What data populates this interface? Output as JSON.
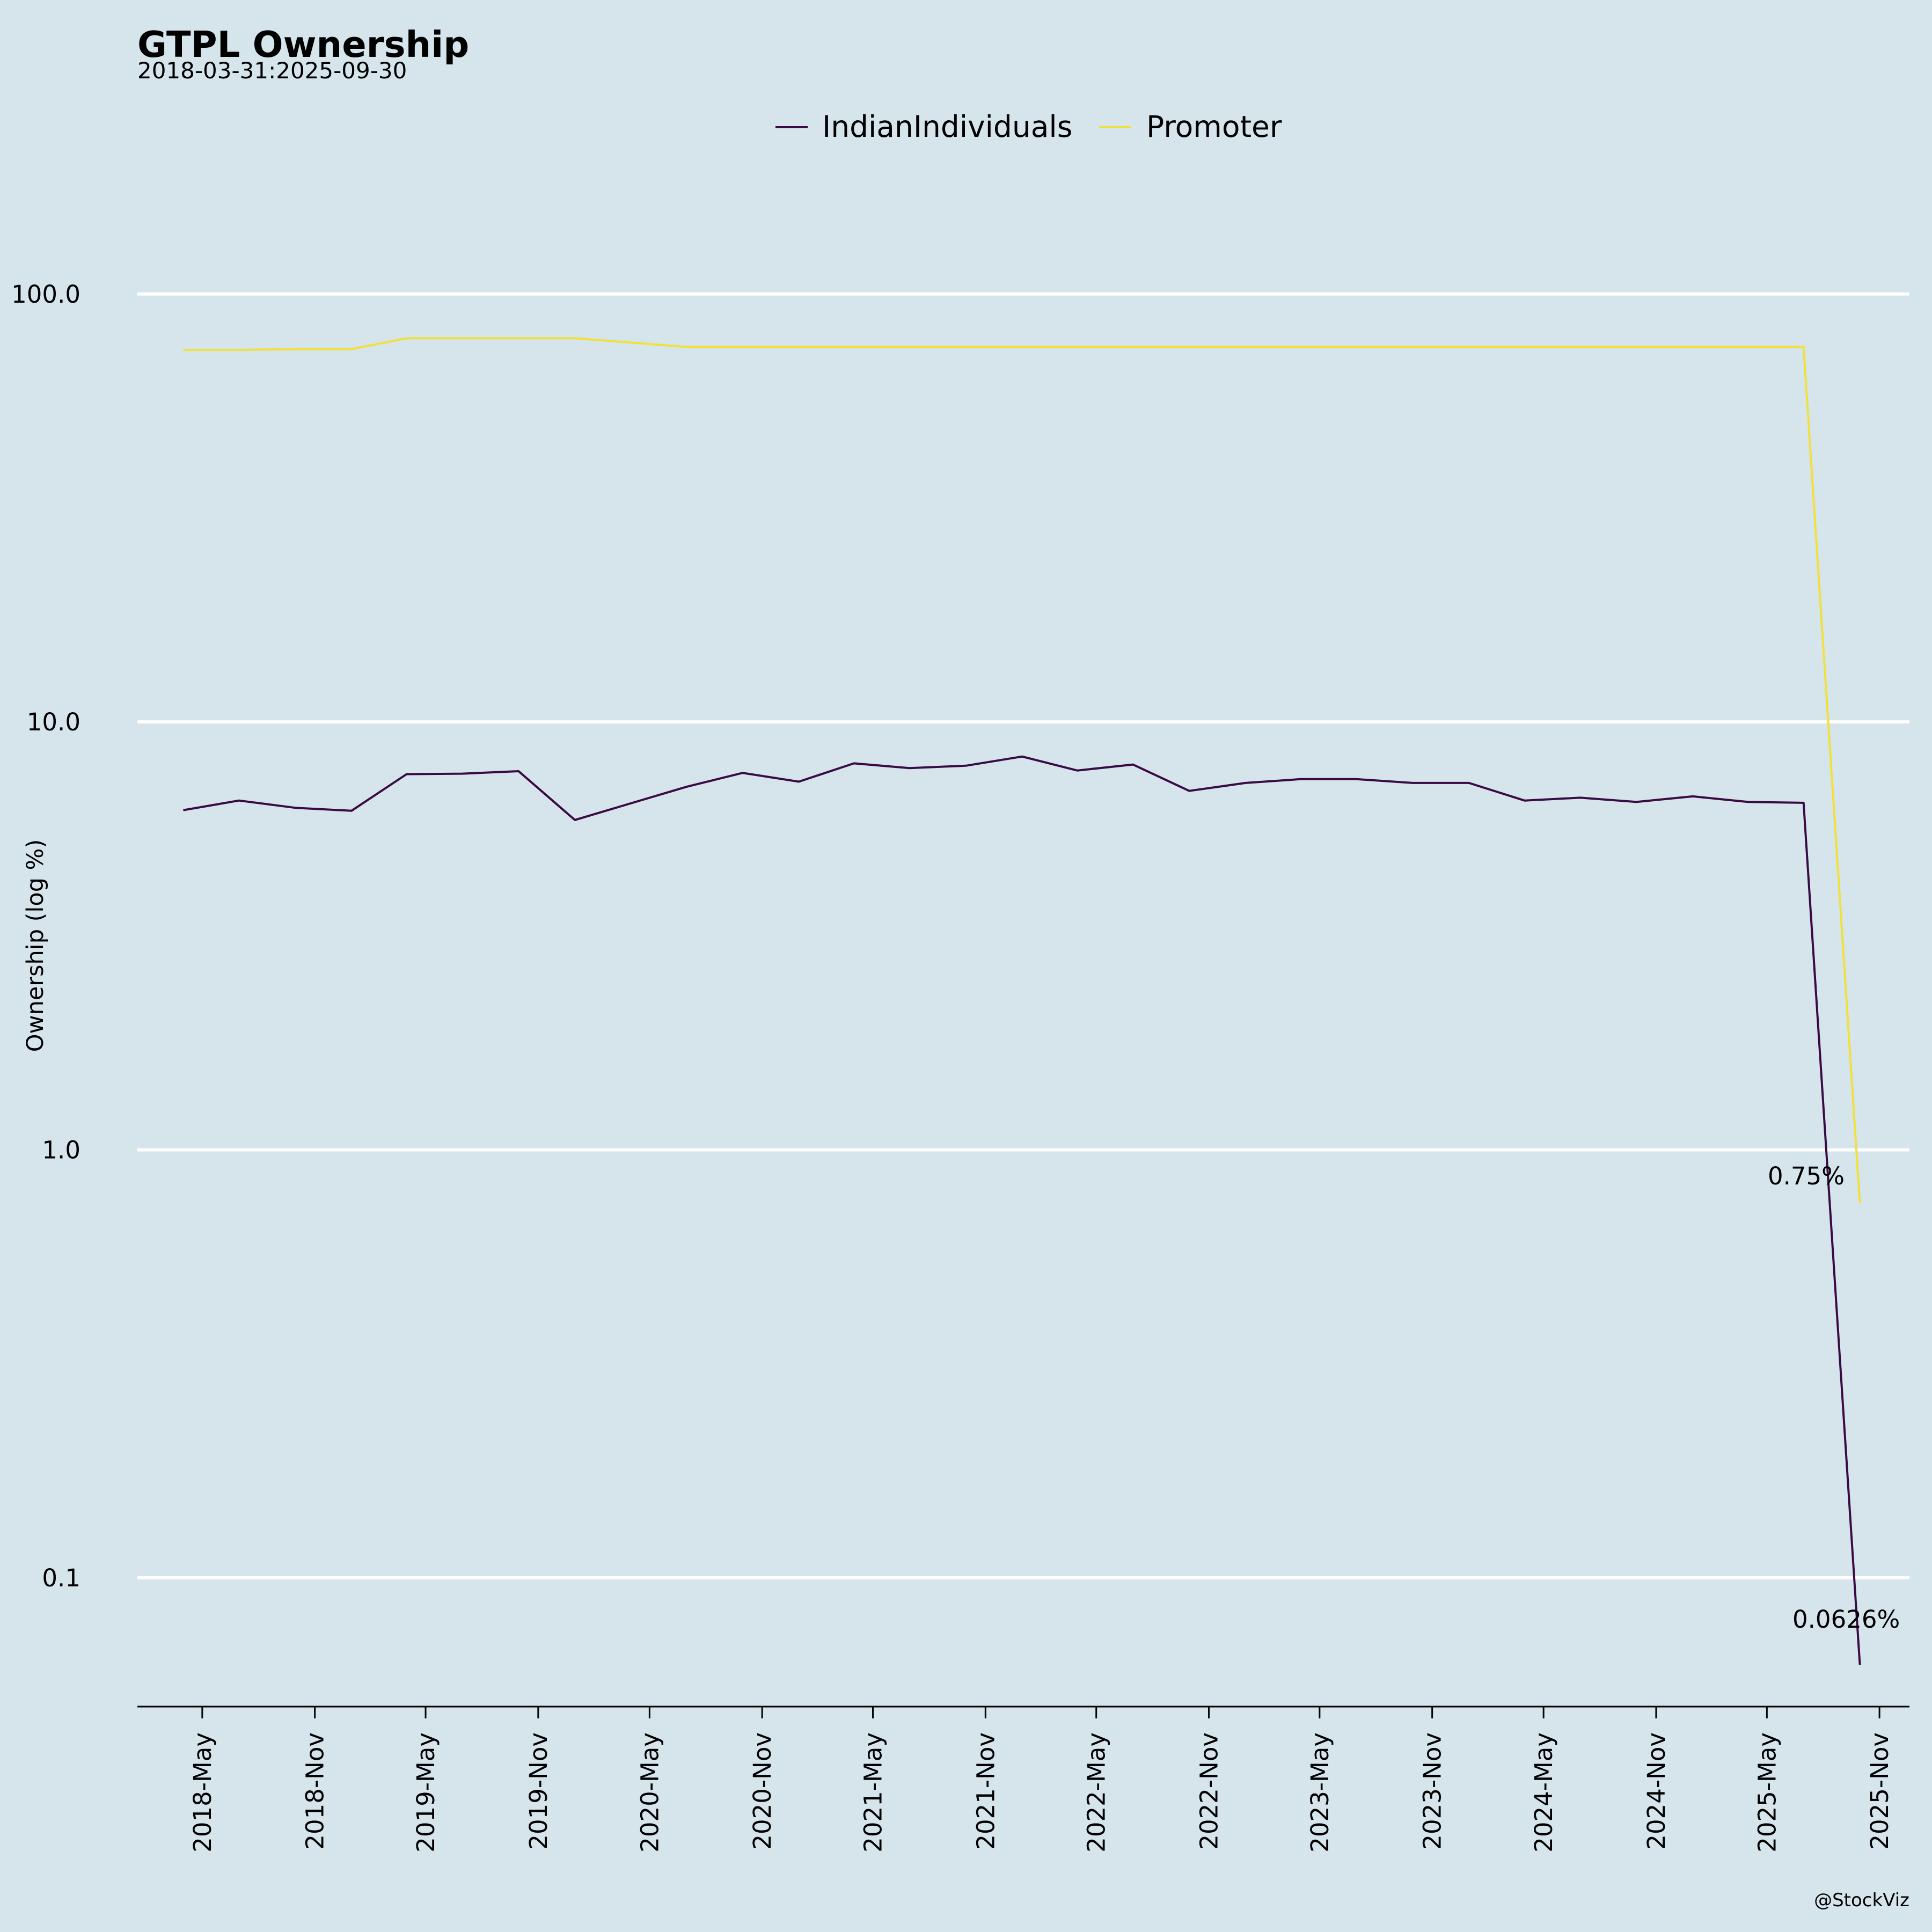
{
  "chart_data": {
    "type": "line",
    "title": "GTPL Ownership",
    "subtitle": "2018-03-31:2025-09-30",
    "ylabel": "Ownership (log %)",
    "xlabel": "",
    "yscale": "log",
    "ylim": [
      0.05,
      160
    ],
    "yticks": [
      0.1,
      1.0,
      10.0,
      100.0
    ],
    "ytick_labels": [
      "0.1",
      "1.0",
      "10.0",
      "100.0"
    ],
    "xlim": [
      "2018-01-15",
      "2025-12-20"
    ],
    "xtick_dates": [
      "2018-05-01",
      "2018-11-01",
      "2019-05-01",
      "2019-11-01",
      "2020-05-01",
      "2020-11-01",
      "2021-05-01",
      "2021-11-01",
      "2022-05-01",
      "2022-11-01",
      "2023-05-01",
      "2023-11-01",
      "2024-05-01",
      "2024-11-01",
      "2025-05-01",
      "2025-11-01"
    ],
    "xtick_labels": [
      "2018-May",
      "2018-Nov",
      "2019-May",
      "2019-Nov",
      "2020-May",
      "2020-Nov",
      "2021-May",
      "2021-Nov",
      "2022-May",
      "2022-Nov",
      "2023-May",
      "2023-Nov",
      "2024-May",
      "2024-Nov",
      "2025-May",
      "2025-Nov"
    ],
    "grid": "horizontal",
    "legend": "top-center",
    "x": [
      "2018-03-31",
      "2018-06-30",
      "2018-09-30",
      "2018-12-31",
      "2019-03-31",
      "2019-06-30",
      "2019-09-30",
      "2019-12-31",
      "2020-03-31",
      "2020-06-30",
      "2020-09-30",
      "2020-12-31",
      "2021-03-31",
      "2021-06-30",
      "2021-09-30",
      "2021-12-31",
      "2022-03-31",
      "2022-06-30",
      "2022-09-30",
      "2022-12-31",
      "2023-03-31",
      "2023-06-30",
      "2023-09-30",
      "2023-12-31",
      "2024-03-31",
      "2024-06-30",
      "2024-09-30",
      "2024-12-31",
      "2025-03-31",
      "2025-06-30",
      "2025-09-30"
    ],
    "series": [
      {
        "name": "IndianIndividuals",
        "color": "#3b0a45",
        "values": [
          6.22,
          6.55,
          6.3,
          6.2,
          7.55,
          7.57,
          7.67,
          5.9,
          6.45,
          7.05,
          7.6,
          7.25,
          8.0,
          7.8,
          7.9,
          8.3,
          7.7,
          7.95,
          6.9,
          7.2,
          7.35,
          7.35,
          7.2,
          7.2,
          6.55,
          6.65,
          6.5,
          6.7,
          6.5,
          6.47,
          0.0626
        ]
      },
      {
        "name": "Promoter",
        "color": "#f2e03c",
        "values": [
          74.0,
          74.0,
          74.3,
          74.3,
          78.8,
          78.8,
          78.8,
          78.8,
          77.0,
          75.2,
          75.2,
          75.2,
          75.2,
          75.2,
          75.2,
          75.2,
          75.2,
          75.2,
          75.2,
          75.2,
          75.2,
          75.2,
          75.2,
          75.2,
          75.2,
          75.2,
          75.2,
          75.2,
          75.2,
          75.2,
          0.75
        ]
      }
    ],
    "annotations": [
      {
        "series": "Promoter",
        "text": "0.75%"
      },
      {
        "series": "IndianIndividuals",
        "text": "0.0626%"
      }
    ],
    "credit": "@StockViz"
  }
}
